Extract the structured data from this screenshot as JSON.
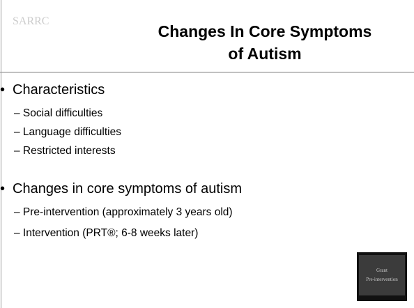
{
  "header": {
    "logo": "SARRC",
    "title_lines": [
      "Changes In Core Symptoms",
      "of Autism"
    ]
  },
  "bullets": [
    {
      "text": "Characteristics",
      "subitems": [
        "– Social difficulties",
        "– Language difficulties",
        "– Restricted interests"
      ]
    },
    {
      "text": "Changes in core symptoms of autism",
      "subitems": [
        "– Pre-intervention (approximately 3 years old)",
        "– Intervention (PRT®; 6-8 weeks later)"
      ]
    }
  ],
  "thumbnail": {
    "lines": [
      "Grant",
      "Pre-intervention"
    ]
  }
}
